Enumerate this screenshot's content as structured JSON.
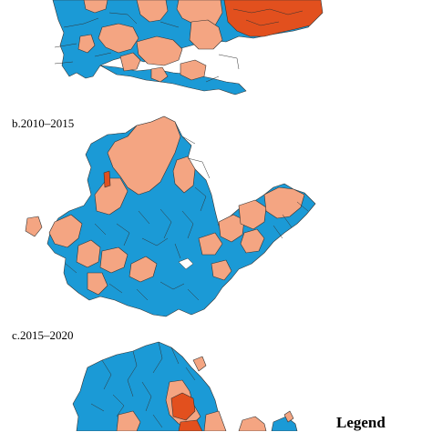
{
  "panels": [
    {
      "id": "a",
      "label": ""
    },
    {
      "id": "b",
      "label": "b.2010–2015"
    },
    {
      "id": "c",
      "label": "c.2015–2020"
    }
  ],
  "legend": {
    "title": "Legend"
  },
  "colors": {
    "blue": "#1b9ad6",
    "salmon": "#f4a582",
    "red": "#e2501e",
    "border": "#333333"
  }
}
